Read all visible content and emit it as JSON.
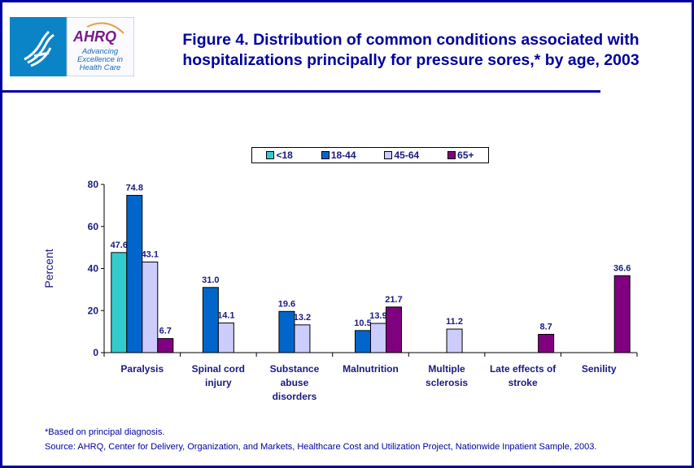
{
  "header": {
    "title_line1": "Figure 4. Distribution of common conditions associated with",
    "title_line2": "hospitalizations principally for pressure sores,* by age, 2003",
    "logo_text": [
      "AHRQ",
      "Advancing",
      "Excellence in",
      "Health Care",
      "DEPARTMENT OF HEALTH & HUMAN SERVICES USA"
    ]
  },
  "chart_data": {
    "type": "bar",
    "title": "",
    "xlabel": "",
    "ylabel": "Percent",
    "ylim": [
      0,
      80
    ],
    "yticks": [
      0,
      20,
      40,
      60,
      80
    ],
    "grid": false,
    "legend_position": "top",
    "categories": [
      [
        "Paralysis"
      ],
      [
        "Spinal cord",
        "injury"
      ],
      [
        "Substance",
        "abuse",
        "disorders"
      ],
      [
        "Malnutrition"
      ],
      [
        "Multiple",
        "sclerosis"
      ],
      [
        "Late effects of",
        "stroke"
      ],
      [
        "Senility"
      ]
    ],
    "series": [
      {
        "name": "<18",
        "color": "#33cccc",
        "values": [
          47.6,
          null,
          null,
          null,
          null,
          null,
          null
        ]
      },
      {
        "name": "18-44",
        "color": "#0066cc",
        "values": [
          74.8,
          31.0,
          19.6,
          10.5,
          null,
          null,
          null
        ]
      },
      {
        "name": "45-64",
        "color": "#ccccff",
        "values": [
          43.1,
          14.1,
          13.2,
          13.9,
          11.2,
          null,
          null
        ]
      },
      {
        "name": "65+",
        "color": "#800080",
        "values": [
          6.7,
          null,
          null,
          21.7,
          null,
          8.7,
          36.6
        ]
      }
    ]
  },
  "footer": {
    "note": "*Based on principal diagnosis.",
    "source": "Source: AHRQ, Center for Delivery, Organization, and Markets, Healthcare Cost and Utilization Project, Nationwide Inpatient Sample, 2003."
  }
}
